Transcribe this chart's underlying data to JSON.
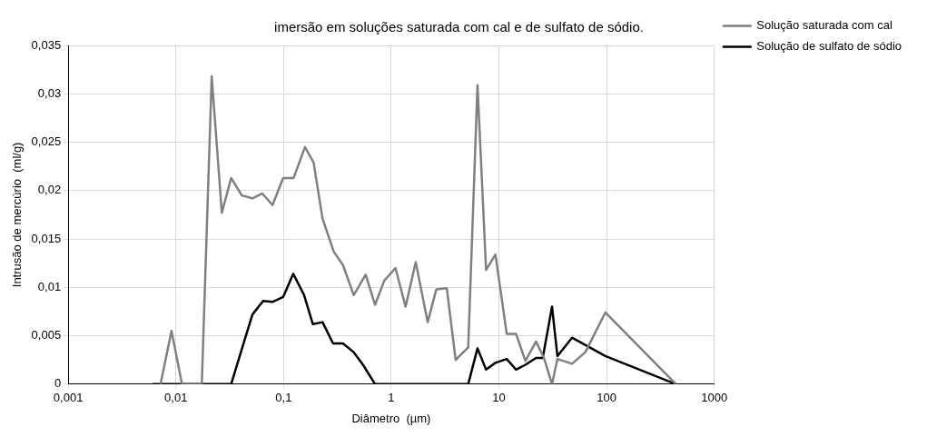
{
  "chart_data": {
    "type": "line",
    "title": "imersão em soluções saturada com cal e de sulfato de sódio.",
    "xlabel": "Diâmetro  (µm)",
    "ylabel": "Intrusão de mercúrio  (ml/g)",
    "log": "x",
    "grid": true,
    "legend": "top right",
    "marker": "none",
    "line_style": "solid",
    "xlim": [
      0.001,
      1000
    ],
    "xticks": [
      {
        "value": 0.001,
        "label": "0,001"
      },
      {
        "value": 0.01,
        "label": "0,01"
      },
      {
        "value": 0.1,
        "label": "0,1"
      },
      1,
      10,
      100,
      1000
    ],
    "ylim": [
      0,
      0.035
    ],
    "yticks": [
      0,
      {
        "value": 0.005,
        "label": "0,005"
      },
      {
        "value": 0.01,
        "label": "0,01"
      },
      {
        "value": 0.015,
        "label": "0,015"
      },
      {
        "value": 0.02,
        "label": "0,02"
      },
      {
        "value": 0.025,
        "label": "0,025"
      },
      {
        "value": 0.03,
        "label": "0,03"
      },
      {
        "value": 0.035,
        "label": "0,035"
      }
    ],
    "series": [
      {
        "name": "Solução saturada com cal",
        "color": "#808080",
        "x": [
          0.0072,
          0.0091,
          0.0114,
          0.0174,
          0.0215,
          0.0267,
          0.0326,
          0.0409,
          0.0514,
          0.0635,
          0.0789,
          0.099,
          0.124,
          0.158,
          0.19,
          0.23,
          0.292,
          0.356,
          0.448,
          0.578,
          0.707,
          0.861,
          1.094,
          1.358,
          1.687,
          2.18,
          2.62,
          3.28,
          3.96,
          5.18,
          6.32,
          7.59,
          9.27,
          11.8,
          14.4,
          17.6,
          22.1,
          26.2,
          31.1,
          34.9,
          47.7,
          63.4,
          97.2,
          440
        ],
        "values": [
          0,
          0.0055,
          0,
          0,
          0.0318,
          0.0177,
          0.0213,
          0.0195,
          0.0192,
          0.0197,
          0.0185,
          0.0213,
          0.0213,
          0.0245,
          0.0229,
          0.0171,
          0.0137,
          0.0123,
          0.0092,
          0.0113,
          0.0082,
          0.0107,
          0.012,
          0.008,
          0.0126,
          0.0064,
          0.0098,
          0.0099,
          0.0025,
          0.0038,
          0.0309,
          0.0118,
          0.0134,
          0.0052,
          0.0052,
          0.0024,
          0.0044,
          0.0027,
          0,
          0.0026,
          0.0021,
          0.0033,
          0.0074,
          0
        ]
      },
      {
        "name": "Solução de sulfato de sódio",
        "color": "#000000",
        "x": [
          0.0061,
          0.0326,
          0.0422,
          0.0514,
          0.0646,
          0.0789,
          0.099,
          0.123,
          0.155,
          0.187,
          0.23,
          0.288,
          0.356,
          0.448,
          0.546,
          0.707,
          5.18,
          6.32,
          7.59,
          9.27,
          11.8,
          14.4,
          17.6,
          22.1,
          25.5,
          31.1,
          34.9,
          47.7,
          97.2,
          440
        ],
        "values": [
          0,
          0,
          0.0041,
          0.0072,
          0.0086,
          0.0085,
          0.009,
          0.0114,
          0.0092,
          0.0062,
          0.0064,
          0.0042,
          0.0042,
          0.0033,
          0.002,
          0,
          0,
          0.0037,
          0.0015,
          0.0022,
          0.0026,
          0.0015,
          0.002,
          0.0027,
          0.0027,
          0.008,
          0.0029,
          0.0048,
          0.0029,
          0
        ]
      }
    ]
  }
}
